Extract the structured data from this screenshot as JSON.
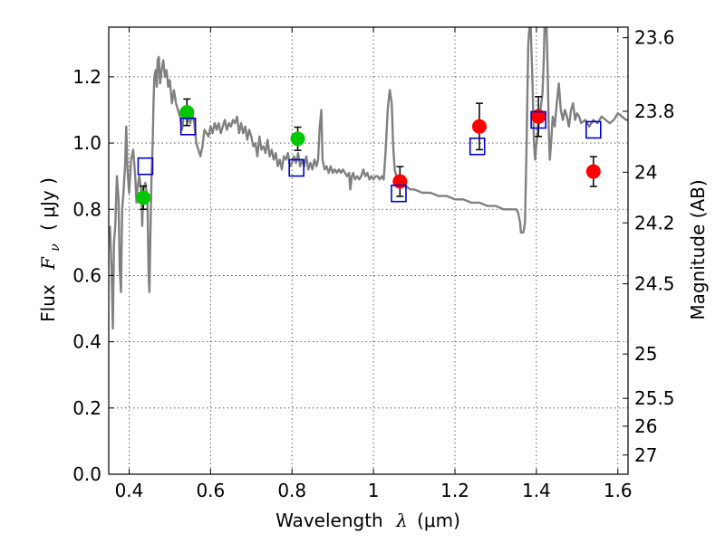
{
  "chart_data": {
    "type": "scatter",
    "xlabel": "Wavelength",
    "xlabel_symbol": "λ",
    "xlabel_unit": "(μm)",
    "ylabel": "Flux",
    "ylabel_symbol": "F",
    "ylabel_subscript": "ν",
    "ylabel_unit": "( μJy )",
    "y2label": "Magnitude (AB)",
    "xlim": [
      0.35,
      1.625
    ],
    "ylim": [
      0.0,
      1.35
    ],
    "grid": true,
    "x_ticks": [
      {
        "value": 0.4,
        "label": "0.4"
      },
      {
        "value": 0.6,
        "label": "0.6"
      },
      {
        "value": 0.8,
        "label": "0.8"
      },
      {
        "value": 1.0,
        "label": "1"
      },
      {
        "value": 1.2,
        "label": "1.2"
      },
      {
        "value": 1.4,
        "label": "1.4"
      },
      {
        "value": 1.6,
        "label": "1.6"
      }
    ],
    "y_ticks": [
      {
        "value": 0.0,
        "label": "0.0"
      },
      {
        "value": 0.2,
        "label": "0.2"
      },
      {
        "value": 0.4,
        "label": "0.4"
      },
      {
        "value": 0.6,
        "label": "0.6"
      },
      {
        "value": 0.8,
        "label": "0.8"
      },
      {
        "value": 1.0,
        "label": "1.0"
      },
      {
        "value": 1.2,
        "label": "1.2"
      }
    ],
    "y2_ticks": [
      {
        "flux": 1.318,
        "label": "23.6"
      },
      {
        "flux": 1.096,
        "label": "23.8"
      },
      {
        "flux": 0.912,
        "label": "24"
      },
      {
        "flux": 0.759,
        "label": "24.2"
      },
      {
        "flux": 0.575,
        "label": "24.5"
      },
      {
        "flux": 0.363,
        "label": "25"
      },
      {
        "flux": 0.229,
        "label": "25.5"
      },
      {
        "flux": 0.145,
        "label": "26"
      },
      {
        "flux": 0.058,
        "label": "27"
      }
    ],
    "series": [
      {
        "name": "model spectrum",
        "kind": "line",
        "color": "#808080",
        "points": [
          [
            0.353,
            0.75
          ],
          [
            0.357,
            0.62
          ],
          [
            0.36,
            0.44
          ],
          [
            0.363,
            0.7
          ],
          [
            0.366,
            0.75
          ],
          [
            0.37,
            0.9
          ],
          [
            0.374,
            0.83
          ],
          [
            0.377,
            0.62
          ],
          [
            0.38,
            0.55
          ],
          [
            0.383,
            0.8
          ],
          [
            0.386,
            0.85
          ],
          [
            0.39,
            0.93
          ],
          [
            0.393,
            1.05
          ],
          [
            0.396,
            0.92
          ],
          [
            0.4,
            0.85
          ],
          [
            0.405,
            0.95
          ],
          [
            0.41,
            0.98
          ],
          [
            0.415,
            0.9
          ],
          [
            0.418,
            0.82
          ],
          [
            0.42,
            0.86
          ],
          [
            0.425,
            0.9
          ],
          [
            0.43,
            0.85
          ],
          [
            0.432,
            0.75
          ],
          [
            0.435,
            0.86
          ],
          [
            0.44,
            0.88
          ],
          [
            0.445,
            0.83
          ],
          [
            0.448,
            0.6
          ],
          [
            0.45,
            0.55
          ],
          [
            0.452,
            0.7
          ],
          [
            0.455,
            0.9
          ],
          [
            0.458,
            1.0
          ],
          [
            0.46,
            1.12
          ],
          [
            0.462,
            1.2
          ],
          [
            0.465,
            1.22
          ],
          [
            0.468,
            1.17
          ],
          [
            0.47,
            1.25
          ],
          [
            0.473,
            1.26
          ],
          [
            0.476,
            1.18
          ],
          [
            0.48,
            1.22
          ],
          [
            0.484,
            1.25
          ],
          [
            0.488,
            1.2
          ],
          [
            0.492,
            1.22
          ],
          [
            0.496,
            1.17
          ],
          [
            0.5,
            1.19
          ],
          [
            0.505,
            1.12
          ],
          [
            0.51,
            1.16
          ],
          [
            0.515,
            1.12
          ],
          [
            0.52,
            1.1
          ],
          [
            0.525,
            1.08
          ],
          [
            0.53,
            1.04
          ],
          [
            0.535,
            1.09
          ],
          [
            0.54,
            1.11
          ],
          [
            0.545,
            1.07
          ],
          [
            0.55,
            1.06
          ],
          [
            0.555,
            1.09
          ],
          [
            0.56,
            1.06
          ],
          [
            0.565,
            1.0
          ],
          [
            0.57,
            0.98
          ],
          [
            0.575,
            0.96
          ],
          [
            0.58,
            0.99
          ],
          [
            0.585,
            1.04
          ],
          [
            0.59,
            1.03
          ],
          [
            0.595,
            1.02
          ],
          [
            0.6,
            1.05
          ],
          [
            0.605,
            1.03
          ],
          [
            0.61,
            1.06
          ],
          [
            0.615,
            1.04
          ],
          [
            0.62,
            1.06
          ],
          [
            0.625,
            1.03
          ],
          [
            0.63,
            1.05
          ],
          [
            0.635,
            1.07
          ],
          [
            0.64,
            1.04
          ],
          [
            0.645,
            1.06
          ],
          [
            0.65,
            1.05
          ],
          [
            0.655,
            1.07
          ],
          [
            0.66,
            1.06
          ],
          [
            0.665,
            1.08
          ],
          [
            0.67,
            1.03
          ],
          [
            0.675,
            1.06
          ],
          [
            0.68,
            1.03
          ],
          [
            0.685,
            1.05
          ],
          [
            0.69,
            1.01
          ],
          [
            0.695,
            1.04
          ],
          [
            0.7,
            1.02
          ],
          [
            0.705,
            0.99
          ],
          [
            0.71,
            1.0
          ],
          [
            0.715,
            0.96
          ],
          [
            0.72,
            1.02
          ],
          [
            0.725,
            0.98
          ],
          [
            0.73,
            0.99
          ],
          [
            0.735,
            0.97
          ],
          [
            0.74,
            1.01
          ],
          [
            0.745,
            0.96
          ],
          [
            0.75,
            0.98
          ],
          [
            0.755,
            0.95
          ],
          [
            0.76,
            0.97
          ],
          [
            0.765,
            0.93
          ],
          [
            0.77,
            0.95
          ],
          [
            0.775,
            0.92
          ],
          [
            0.78,
            0.96
          ],
          [
            0.785,
            0.95
          ],
          [
            0.79,
            0.97
          ],
          [
            0.795,
            0.93
          ],
          [
            0.8,
            0.94
          ],
          [
            0.805,
            0.96
          ],
          [
            0.81,
            0.94
          ],
          [
            0.815,
            0.97
          ],
          [
            0.82,
            0.93
          ],
          [
            0.825,
            0.95
          ],
          [
            0.83,
            0.93
          ],
          [
            0.835,
            0.96
          ],
          [
            0.84,
            0.92
          ],
          [
            0.845,
            0.94
          ],
          [
            0.85,
            0.92
          ],
          [
            0.855,
            0.95
          ],
          [
            0.86,
            0.93
          ],
          [
            0.864,
            0.95
          ],
          [
            0.868,
            1.05
          ],
          [
            0.872,
            1.1
          ],
          [
            0.875,
            0.95
          ],
          [
            0.88,
            0.92
          ],
          [
            0.885,
            0.93
          ],
          [
            0.89,
            0.91
          ],
          [
            0.895,
            0.93
          ],
          [
            0.9,
            0.91
          ],
          [
            0.905,
            0.92
          ],
          [
            0.91,
            0.91
          ],
          [
            0.915,
            0.92
          ],
          [
            0.92,
            0.91
          ],
          [
            0.925,
            0.92
          ],
          [
            0.93,
            0.91
          ],
          [
            0.935,
            0.9
          ],
          [
            0.94,
            0.91
          ],
          [
            0.943,
            0.86
          ],
          [
            0.947,
            0.9
          ],
          [
            0.95,
            0.91
          ],
          [
            0.955,
            0.89
          ],
          [
            0.96,
            0.9
          ],
          [
            0.965,
            0.89
          ],
          [
            0.97,
            0.9
          ],
          [
            0.975,
            0.92
          ],
          [
            0.98,
            0.9
          ],
          [
            0.985,
            0.91
          ],
          [
            0.99,
            0.89
          ],
          [
            0.995,
            0.9
          ],
          [
            1.0,
            0.89
          ],
          [
            1.005,
            0.9
          ],
          [
            1.01,
            0.9
          ],
          [
            1.015,
            0.89
          ],
          [
            1.02,
            0.9
          ],
          [
            1.025,
            0.89
          ],
          [
            1.03,
            0.98
          ],
          [
            1.035,
            1.1
          ],
          [
            1.04,
            1.16
          ],
          [
            1.045,
            1.12
          ],
          [
            1.048,
            1.0
          ],
          [
            1.052,
            0.92
          ],
          [
            1.056,
            0.9
          ],
          [
            1.06,
            0.88
          ],
          [
            1.07,
            0.87
          ],
          [
            1.08,
            0.87
          ],
          [
            1.09,
            0.86
          ],
          [
            1.1,
            0.86
          ],
          [
            1.12,
            0.85
          ],
          [
            1.14,
            0.85
          ],
          [
            1.16,
            0.84
          ],
          [
            1.18,
            0.84
          ],
          [
            1.2,
            0.83
          ],
          [
            1.22,
            0.83
          ],
          [
            1.24,
            0.82
          ],
          [
            1.26,
            0.82
          ],
          [
            1.28,
            0.81
          ],
          [
            1.3,
            0.81
          ],
          [
            1.32,
            0.8
          ],
          [
            1.34,
            0.8
          ],
          [
            1.35,
            0.8
          ],
          [
            1.355,
            0.79
          ],
          [
            1.36,
            0.76
          ],
          [
            1.362,
            0.73
          ],
          [
            1.368,
            0.73
          ],
          [
            1.372,
            0.76
          ],
          [
            1.376,
            1.0
          ],
          [
            1.38,
            1.3
          ],
          [
            1.383,
            1.35
          ],
          [
            1.386,
            1.35
          ],
          [
            1.39,
            1.2
          ],
          [
            1.394,
            1.0
          ],
          [
            1.397,
            0.95
          ],
          [
            1.4,
            1.0
          ],
          [
            1.405,
            1.05
          ],
          [
            1.41,
            1.1
          ],
          [
            1.415,
            1.15
          ],
          [
            1.418,
            1.25
          ],
          [
            1.42,
            1.35
          ],
          [
            1.425,
            1.35
          ],
          [
            1.428,
            1.2
          ],
          [
            1.43,
            1.05
          ],
          [
            1.433,
            0.95
          ],
          [
            1.436,
            1.0
          ],
          [
            1.44,
            1.08
          ],
          [
            1.445,
            1.05
          ],
          [
            1.45,
            1.12
          ],
          [
            1.455,
            1.18
          ],
          [
            1.46,
            1.1
          ],
          [
            1.465,
            1.07
          ],
          [
            1.47,
            1.1
          ],
          [
            1.475,
            1.08
          ],
          [
            1.48,
            1.05
          ],
          [
            1.485,
            1.1
          ],
          [
            1.49,
            1.12
          ],
          [
            1.495,
            1.07
          ],
          [
            1.5,
            1.09
          ],
          [
            1.505,
            1.08
          ],
          [
            1.51,
            1.06
          ],
          [
            1.52,
            1.07
          ],
          [
            1.53,
            1.05
          ],
          [
            1.54,
            1.07
          ],
          [
            1.55,
            1.06
          ],
          [
            1.56,
            1.08
          ],
          [
            1.57,
            1.07
          ],
          [
            1.58,
            1.06
          ],
          [
            1.59,
            1.07
          ],
          [
            1.6,
            1.09
          ],
          [
            1.61,
            1.08
          ],
          [
            1.62,
            1.07
          ],
          [
            1.625,
            1.07
          ]
        ]
      },
      {
        "name": "observed (green)",
        "kind": "points",
        "marker": "circle",
        "color": "#00c800",
        "points": [
          {
            "x": 0.435,
            "y": 0.835,
            "err": 0.035
          },
          {
            "x": 0.542,
            "y": 1.093,
            "err": 0.04
          },
          {
            "x": 0.814,
            "y": 1.013,
            "err": 0.035
          }
        ]
      },
      {
        "name": "observed (red)",
        "kind": "points",
        "marker": "circle",
        "color": "#ff0000",
        "points": [
          {
            "x": 1.065,
            "y": 0.884,
            "err": 0.045
          },
          {
            "x": 1.26,
            "y": 1.05,
            "err": 0.07
          },
          {
            "x": 1.405,
            "y": 1.08,
            "err": 0.06
          },
          {
            "x": 1.54,
            "y": 0.914,
            "err": 0.045
          }
        ]
      },
      {
        "name": "model photometry",
        "kind": "points",
        "marker": "open-square",
        "color": "#0000cc",
        "points": [
          {
            "x": 0.44,
            "y": 0.93
          },
          {
            "x": 0.545,
            "y": 1.05
          },
          {
            "x": 0.811,
            "y": 0.925
          },
          {
            "x": 1.062,
            "y": 0.848
          },
          {
            "x": 1.255,
            "y": 0.99
          },
          {
            "x": 1.405,
            "y": 1.07
          },
          {
            "x": 1.54,
            "y": 1.04
          }
        ]
      }
    ]
  }
}
